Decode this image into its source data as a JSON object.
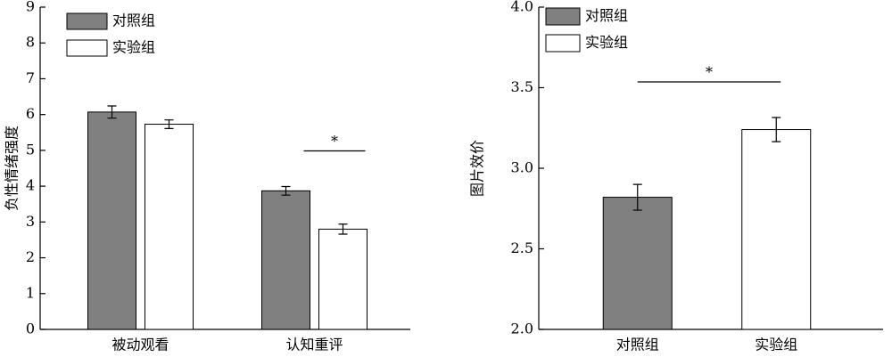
{
  "chart_data": [
    {
      "type": "grouped-bar",
      "ylabel": "负性情绪强度",
      "categories": [
        "被动观看",
        "认知重评"
      ],
      "series": [
        {
          "name": "对照组",
          "color": "#808080",
          "values": [
            6.07,
            3.87
          ],
          "errors": [
            0.17,
            0.12
          ]
        },
        {
          "name": "实验组",
          "color": "#ffffff",
          "values": [
            5.73,
            2.8
          ],
          "errors": [
            0.12,
            0.14
          ]
        }
      ],
      "ylim": [
        0,
        9
      ],
      "yticks": [
        0,
        1,
        2,
        3,
        4,
        5,
        6,
        7,
        8,
        9
      ],
      "annotations": [
        {
          "text": "*",
          "category": "认知重评"
        }
      ]
    },
    {
      "type": "bar",
      "ylabel": "图片效价",
      "categories": [
        "对照组",
        "实验组"
      ],
      "values": [
        2.82,
        3.24
      ],
      "errors": [
        0.08,
        0.075
      ],
      "colors": [
        "#808080",
        "#ffffff"
      ],
      "legend": true,
      "ylim": [
        2,
        4
      ],
      "yticks": [
        {
          "value": 2,
          "label": "2.0"
        },
        2.5,
        {
          "value": 3,
          "label": "3.0"
        },
        3.5,
        {
          "value": 4,
          "label": "4.0"
        }
      ],
      "annotations": [
        {
          "text": "*",
          "categories": [
            "对照组",
            "实验组"
          ]
        }
      ]
    }
  ]
}
